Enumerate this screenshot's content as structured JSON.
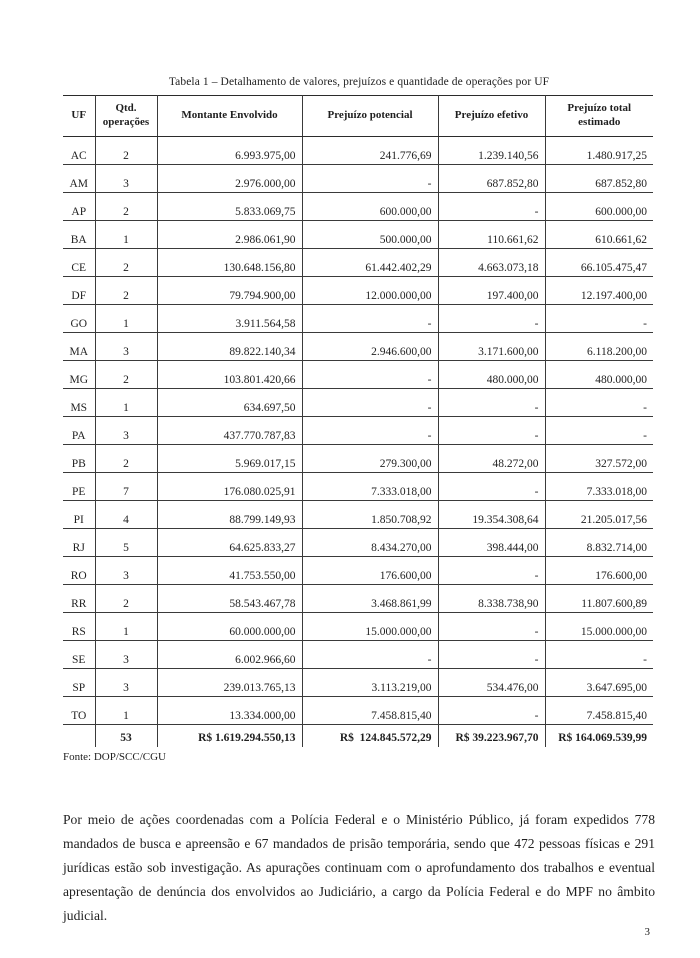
{
  "page": {
    "title": "Tabela 1 – Detalhamento de valores, prejuízos e quantidade de operações por UF",
    "source": "Fonte: DOP/SCC/CGU",
    "paragraph": "Por meio de ações coordenadas com a Polícia Federal e o Ministério Público, já foram expedidos 778 mandados de busca e apreensão e 67 mandados de prisão temporária, sendo que 472 pessoas físicas e 291 jurídicas estão sob investigação. As apurações continuam com o aprofundamento dos trabalhos e eventual apresentação de denúncia dos envolvidos ao Judiciário, a cargo da Polícia Federal e do MPF no âmbito judicial.",
    "page_number": "3"
  },
  "table": {
    "headers": [
      "UF",
      "Qtd.\noperações",
      "Montante Envolvido",
      "Prejuízo potencial",
      "Prejuízo efetivo",
      "Prejuízo total\nestimado"
    ],
    "rows": [
      {
        "uf": "AC",
        "qtd": "2",
        "montante": "6.993.975,00",
        "potencial": "241.776,69",
        "efetivo": "1.239.140,56",
        "total": "1.480.917,25"
      },
      {
        "uf": "AM",
        "qtd": "3",
        "montante": "2.976.000,00",
        "potencial": "-",
        "efetivo": "687.852,80",
        "total": "687.852,80"
      },
      {
        "uf": "AP",
        "qtd": "2",
        "montante": "5.833.069,75",
        "potencial": "600.000,00",
        "efetivo": "-",
        "total": "600.000,00"
      },
      {
        "uf": "BA",
        "qtd": "1",
        "montante": "2.986.061,90",
        "potencial": "500.000,00",
        "efetivo": "110.661,62",
        "total": "610.661,62"
      },
      {
        "uf": "CE",
        "qtd": "2",
        "montante": "130.648.156,80",
        "potencial": "61.442.402,29",
        "efetivo": "4.663.073,18",
        "total": "66.105.475,47"
      },
      {
        "uf": "DF",
        "qtd": "2",
        "montante": "79.794.900,00",
        "potencial": "12.000.000,00",
        "efetivo": "197.400,00",
        "total": "12.197.400,00"
      },
      {
        "uf": "GO",
        "qtd": "1",
        "montante": "3.911.564,58",
        "potencial": "-",
        "efetivo": "-",
        "total": "-"
      },
      {
        "uf": "MA",
        "qtd": "3",
        "montante": "89.822.140,34",
        "potencial": "2.946.600,00",
        "efetivo": "3.171.600,00",
        "total": "6.118.200,00"
      },
      {
        "uf": "MG",
        "qtd": "2",
        "montante": "103.801.420,66",
        "potencial": "-",
        "efetivo": "480.000,00",
        "total": "480.000,00"
      },
      {
        "uf": "MS",
        "qtd": "1",
        "montante": "634.697,50",
        "potencial": "-",
        "efetivo": "-",
        "total": "-"
      },
      {
        "uf": "PA",
        "qtd": "3",
        "montante": "437.770.787,83",
        "potencial": "-",
        "efetivo": "-",
        "total": "-"
      },
      {
        "uf": "PB",
        "qtd": "2",
        "montante": "5.969.017,15",
        "potencial": "279.300,00",
        "efetivo": "48.272,00",
        "total": "327.572,00"
      },
      {
        "uf": "PE",
        "qtd": "7",
        "montante": "176.080.025,91",
        "potencial": "7.333.018,00",
        "efetivo": "-",
        "total": "7.333.018,00"
      },
      {
        "uf": "PI",
        "qtd": "4",
        "montante": "88.799.149,93",
        "potencial": "1.850.708,92",
        "efetivo": "19.354.308,64",
        "total": "21.205.017,56"
      },
      {
        "uf": "RJ",
        "qtd": "5",
        "montante": "64.625.833,27",
        "potencial": "8.434.270,00",
        "efetivo": "398.444,00",
        "total": "8.832.714,00"
      },
      {
        "uf": "RO",
        "qtd": "3",
        "montante": "41.753.550,00",
        "potencial": "176.600,00",
        "efetivo": "-",
        "total": "176.600,00"
      },
      {
        "uf": "RR",
        "qtd": "2",
        "montante": "58.543.467,78",
        "potencial": "3.468.861,99",
        "efetivo": "8.338.738,90",
        "total": "11.807.600,89"
      },
      {
        "uf": "RS",
        "qtd": "1",
        "montante": "60.000.000,00",
        "potencial": "15.000.000,00",
        "efetivo": "-",
        "total": "15.000.000,00"
      },
      {
        "uf": "SE",
        "qtd": "3",
        "montante": "6.002.966,60",
        "potencial": "-",
        "efetivo": "-",
        "total": "-"
      },
      {
        "uf": "SP",
        "qtd": "3",
        "montante": "239.013.765,13",
        "potencial": "3.113.219,00",
        "efetivo": "534.476,00",
        "total": "3.647.695,00"
      },
      {
        "uf": "TO",
        "qtd": "1",
        "montante": "13.334.000,00",
        "potencial": "7.458.815,40",
        "efetivo": "-",
        "total": "7.458.815,40"
      }
    ],
    "total": {
      "uf": "",
      "qtd": "53",
      "montante": "R$ 1.619.294.550,13",
      "potencial": "R$  124.845.572,29",
      "efetivo": "R$ 39.223.967,70",
      "total": "R$ 164.069.539,99"
    }
  }
}
